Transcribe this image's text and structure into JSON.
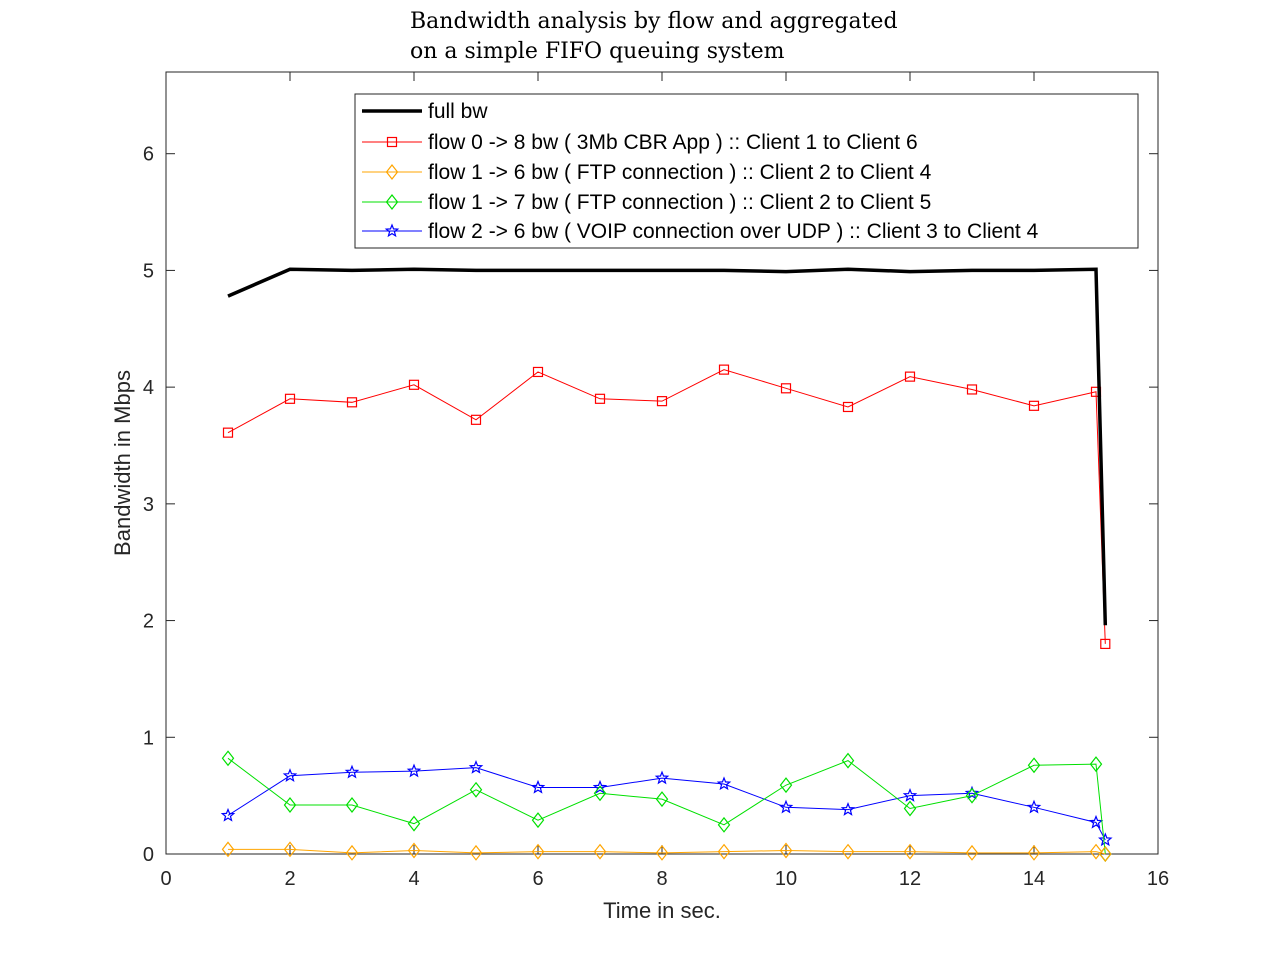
{
  "chart_data": {
    "type": "line",
    "title_lines": [
      "Bandwidth analysis by flow and aggregated",
      "on a simple FIFO queuing system"
    ],
    "xlabel": "Time in sec.",
    "ylabel": "Bandwidth in Mbps",
    "xlim": [
      0,
      16
    ],
    "ylim": [
      0,
      6.7
    ],
    "xticks": [
      0,
      2,
      4,
      6,
      8,
      10,
      12,
      14,
      16
    ],
    "yticks": [
      0,
      1,
      2,
      3,
      4,
      5,
      6
    ],
    "grid": false,
    "legend_position": "top-right",
    "series": [
      {
        "name": "full bw",
        "color": "#000000",
        "marker": "none",
        "x": [
          1,
          2,
          3,
          4,
          5,
          6,
          7,
          8,
          9,
          10,
          11,
          12,
          13,
          14,
          15,
          15.15
        ],
        "y": [
          4.78,
          5.01,
          5.0,
          5.01,
          5.0,
          5.0,
          5.0,
          5.0,
          5.0,
          4.99,
          5.01,
          4.99,
          5.0,
          5.0,
          5.01,
          1.96
        ]
      },
      {
        "name": "flow 0 -> 8 bw ( 3Mb CBR App ) :: Client 1 to Client 6",
        "color": "#ff0000",
        "marker": "square",
        "x": [
          1,
          2,
          3,
          4,
          5,
          6,
          7,
          8,
          9,
          10,
          11,
          12,
          13,
          14,
          15,
          15.15
        ],
        "y": [
          3.61,
          3.9,
          3.87,
          4.02,
          3.72,
          4.13,
          3.9,
          3.88,
          4.15,
          3.99,
          3.83,
          4.09,
          3.98,
          3.84,
          3.96,
          1.8
        ]
      },
      {
        "name": "flow 1 -> 6 bw ( FTP connection ) :: Client 2 to Client 4",
        "color": "#ffa500",
        "marker": "diamond",
        "x": [
          1,
          2,
          3,
          4,
          5,
          6,
          7,
          8,
          9,
          10,
          11,
          12,
          13,
          14,
          15,
          15.15
        ],
        "y": [
          0.04,
          0.04,
          0.01,
          0.03,
          0.01,
          0.02,
          0.02,
          0.01,
          0.02,
          0.03,
          0.02,
          0.02,
          0.01,
          0.01,
          0.02,
          0.0
        ]
      },
      {
        "name": "flow 1 -> 7 bw ( FTP connection ) :: Client 2 to Client 5",
        "color": "#00e000",
        "marker": "diamond",
        "x": [
          1,
          2,
          3,
          4,
          5,
          6,
          7,
          8,
          9,
          10,
          11,
          12,
          13,
          14,
          15,
          15.15
        ],
        "y": [
          0.82,
          0.42,
          0.42,
          0.26,
          0.55,
          0.29,
          0.52,
          0.47,
          0.25,
          0.59,
          0.8,
          0.39,
          0.5,
          0.76,
          0.77,
          0.0
        ]
      },
      {
        "name": "flow 2 -> 6 bw ( VOIP connection over UDP ) :: Client 3 to Client 4",
        "color": "#0000ff",
        "marker": "star",
        "x": [
          1,
          2,
          3,
          4,
          5,
          6,
          7,
          8,
          9,
          10,
          11,
          12,
          13,
          14,
          15,
          15.15
        ],
        "y": [
          0.33,
          0.67,
          0.7,
          0.71,
          0.74,
          0.57,
          0.57,
          0.65,
          0.6,
          0.4,
          0.38,
          0.5,
          0.52,
          0.4,
          0.27,
          0.12
        ]
      }
    ]
  }
}
